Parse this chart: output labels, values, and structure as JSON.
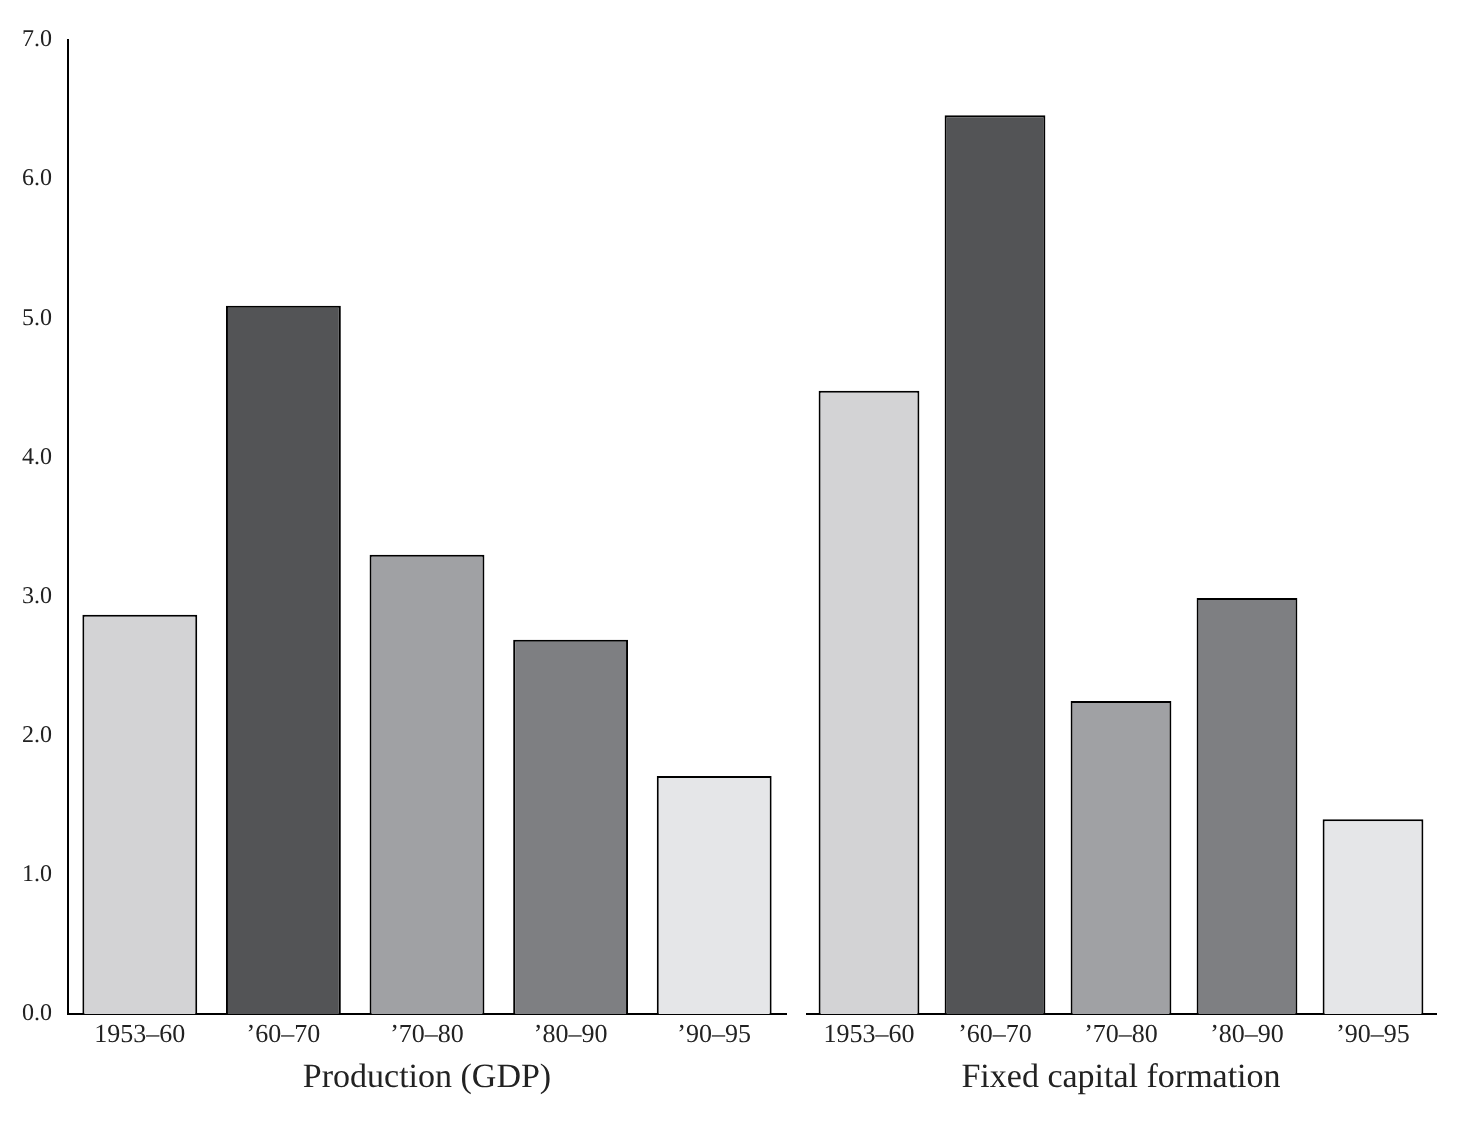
{
  "chart_data": [
    {
      "type": "bar",
      "xlabel": "Production (GDP)",
      "categories": [
        "1953–60",
        "’60–70",
        "’70–80",
        "’80–90",
        "’90–95"
      ],
      "values": [
        2.87,
        5.09,
        3.3,
        2.69,
        1.71
      ],
      "colors": [
        "#d3d3d5",
        "#535456",
        "#a0a1a4",
        "#7e7f82",
        "#e5e6e8"
      ],
      "ylim": [
        0,
        7
      ],
      "yticks": [
        {
          "value": 0,
          "label": "0.0"
        },
        {
          "value": 1,
          "label": "1.0"
        },
        {
          "value": 2,
          "label": "2.0"
        },
        {
          "value": 3,
          "label": "3.0"
        },
        {
          "value": 4,
          "label": "4.0"
        },
        {
          "value": 5,
          "label": "5.0"
        },
        {
          "value": 6,
          "label": "6.0"
        },
        {
          "value": 7,
          "label": "7.0"
        }
      ],
      "grid": false,
      "legend": false
    },
    {
      "type": "bar",
      "xlabel": "Fixed capital formation",
      "categories": [
        "1953–60",
        "’60–70",
        "’70–80",
        "’80–90",
        "’90–95"
      ],
      "values": [
        4.48,
        6.46,
        2.25,
        2.99,
        1.4
      ],
      "colors": [
        "#d3d3d5",
        "#535456",
        "#a0a1a4",
        "#7e7f82",
        "#e5e6e8"
      ],
      "ylim": [
        0,
        7
      ],
      "grid": false,
      "legend": false,
      "tick_labels": "x"
    }
  ]
}
